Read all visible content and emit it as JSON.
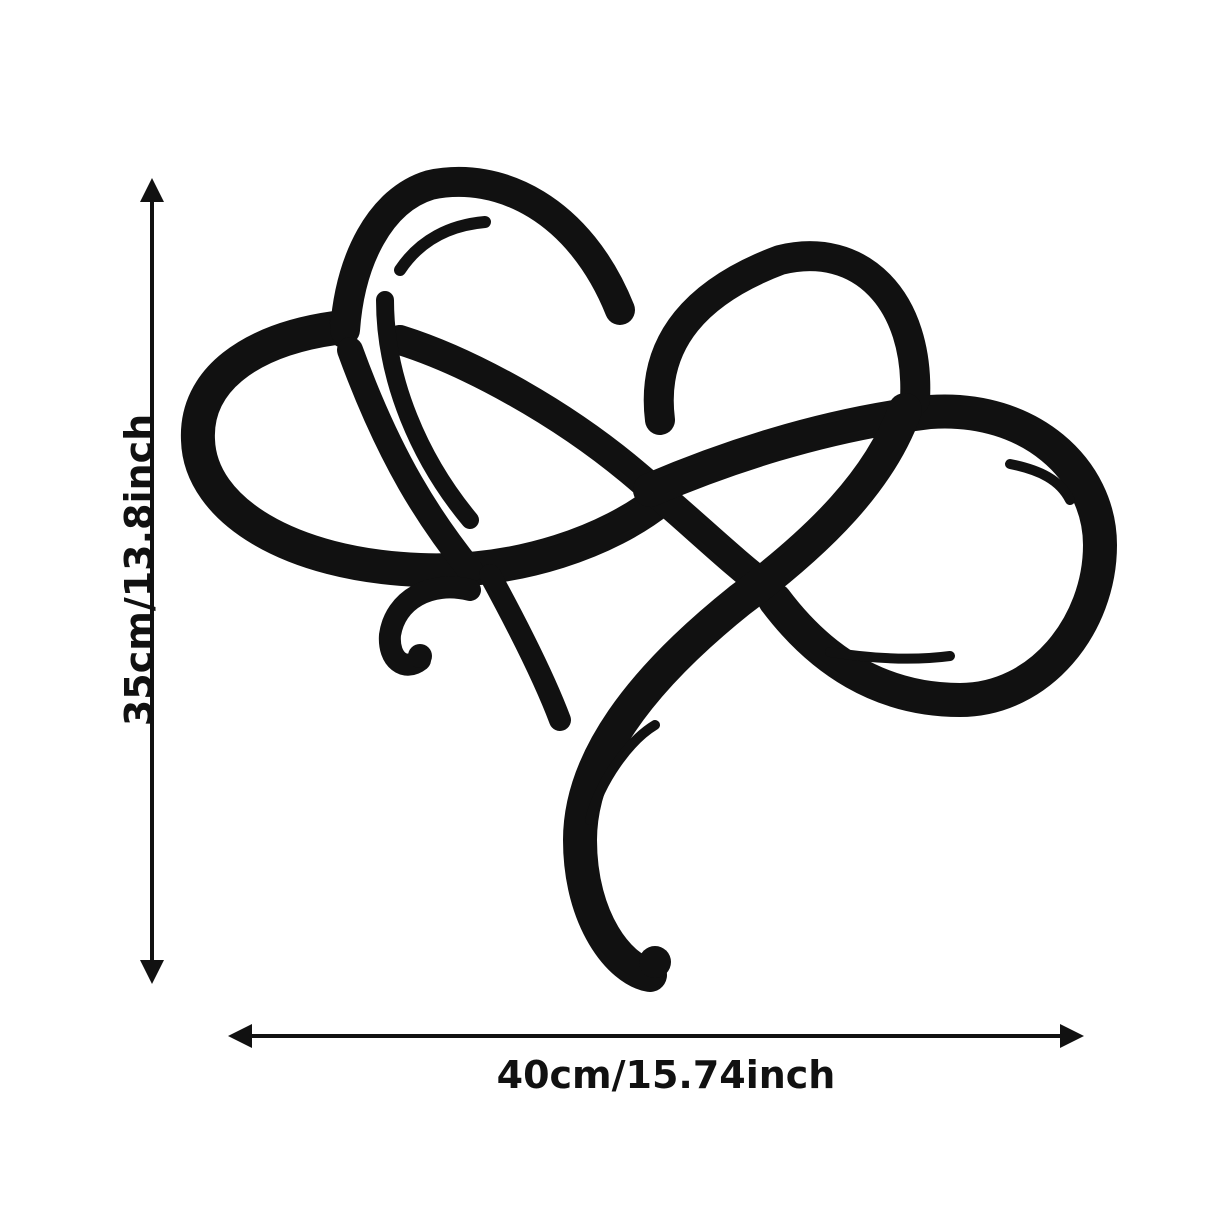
{
  "product": {
    "artwork": "heart-infinity-metal-wall-art",
    "color": "#111111"
  },
  "dimensions": {
    "width_label": "40cm/15.74inch",
    "height_label": "35cm/13.8inch"
  },
  "colors": {
    "background": "#ffffff",
    "ink": "#111111"
  }
}
